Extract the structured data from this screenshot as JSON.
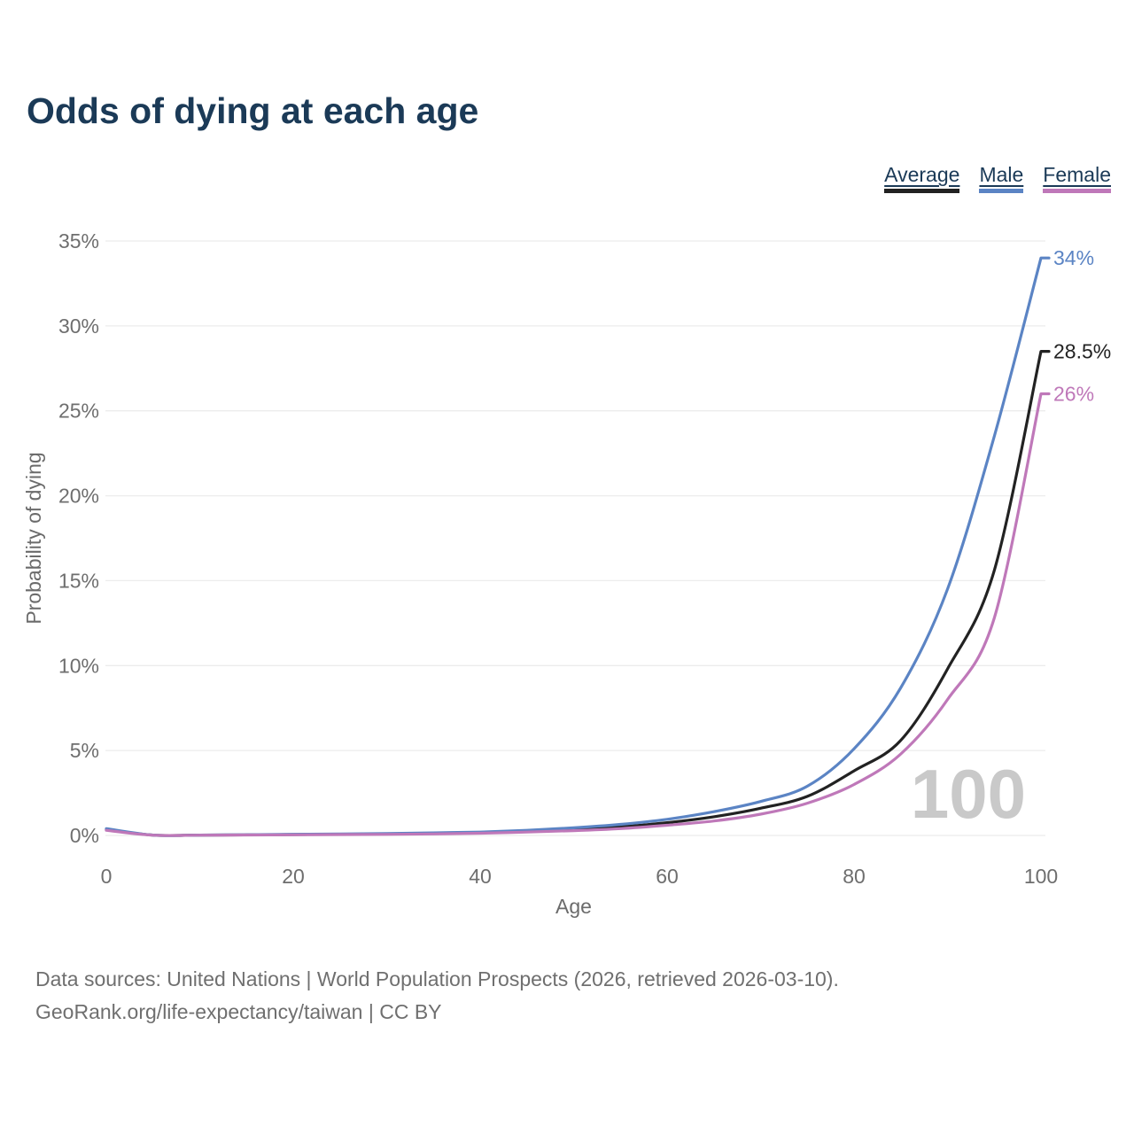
{
  "page": {
    "title": "Odds of dying at each age"
  },
  "legend": {
    "items": [
      {
        "label": "Average",
        "color": "#222222"
      },
      {
        "label": "Male",
        "color": "#5b84c4"
      },
      {
        "label": "Female",
        "color": "#bf78b9"
      }
    ]
  },
  "chart_data": {
    "type": "line",
    "title": "Odds of dying at each age",
    "xlabel": "Age",
    "ylabel": "Probability of dying",
    "xlim": [
      0,
      100
    ],
    "ylim": [
      0,
      35
    ],
    "xticks": [
      0,
      20,
      40,
      60,
      80,
      100
    ],
    "yticks": [
      0,
      5,
      10,
      15,
      20,
      25,
      30,
      35
    ],
    "ytick_suffix": "%",
    "grid": "horizontal",
    "legend_position": "top-right",
    "watermark": "100",
    "x": [
      0,
      5,
      10,
      15,
      20,
      25,
      30,
      35,
      40,
      45,
      50,
      55,
      60,
      65,
      70,
      75,
      80,
      85,
      90,
      95,
      100
    ],
    "series": [
      {
        "name": "Average",
        "color": "#222222",
        "end_label": "28.5%",
        "values": [
          0.35,
          0.02,
          0.02,
          0.03,
          0.05,
          0.07,
          0.09,
          0.12,
          0.17,
          0.25,
          0.35,
          0.5,
          0.75,
          1.1,
          1.6,
          2.3,
          3.8,
          5.6,
          9.8,
          15.6,
          28.5
        ]
      },
      {
        "name": "Male",
        "color": "#5b84c4",
        "end_label": "34%",
        "values": [
          0.4,
          0.02,
          0.02,
          0.04,
          0.07,
          0.09,
          0.11,
          0.15,
          0.2,
          0.3,
          0.45,
          0.65,
          0.95,
          1.4,
          2.0,
          2.9,
          5.1,
          8.7,
          14.5,
          23.5,
          34.0
        ]
      },
      {
        "name": "Female",
        "color": "#bf78b9",
        "end_label": "26%",
        "values": [
          0.3,
          0.015,
          0.015,
          0.025,
          0.035,
          0.05,
          0.06,
          0.09,
          0.13,
          0.2,
          0.28,
          0.4,
          0.6,
          0.85,
          1.25,
          1.9,
          3.0,
          4.8,
          8.0,
          12.8,
          26.0
        ]
      }
    ]
  },
  "footer": {
    "line1": "Data sources: United Nations | World Population Prospects (2026, retrieved 2026-03-10).",
    "line2": "GeoRank.org/life-expectancy/taiwan | CC BY"
  }
}
